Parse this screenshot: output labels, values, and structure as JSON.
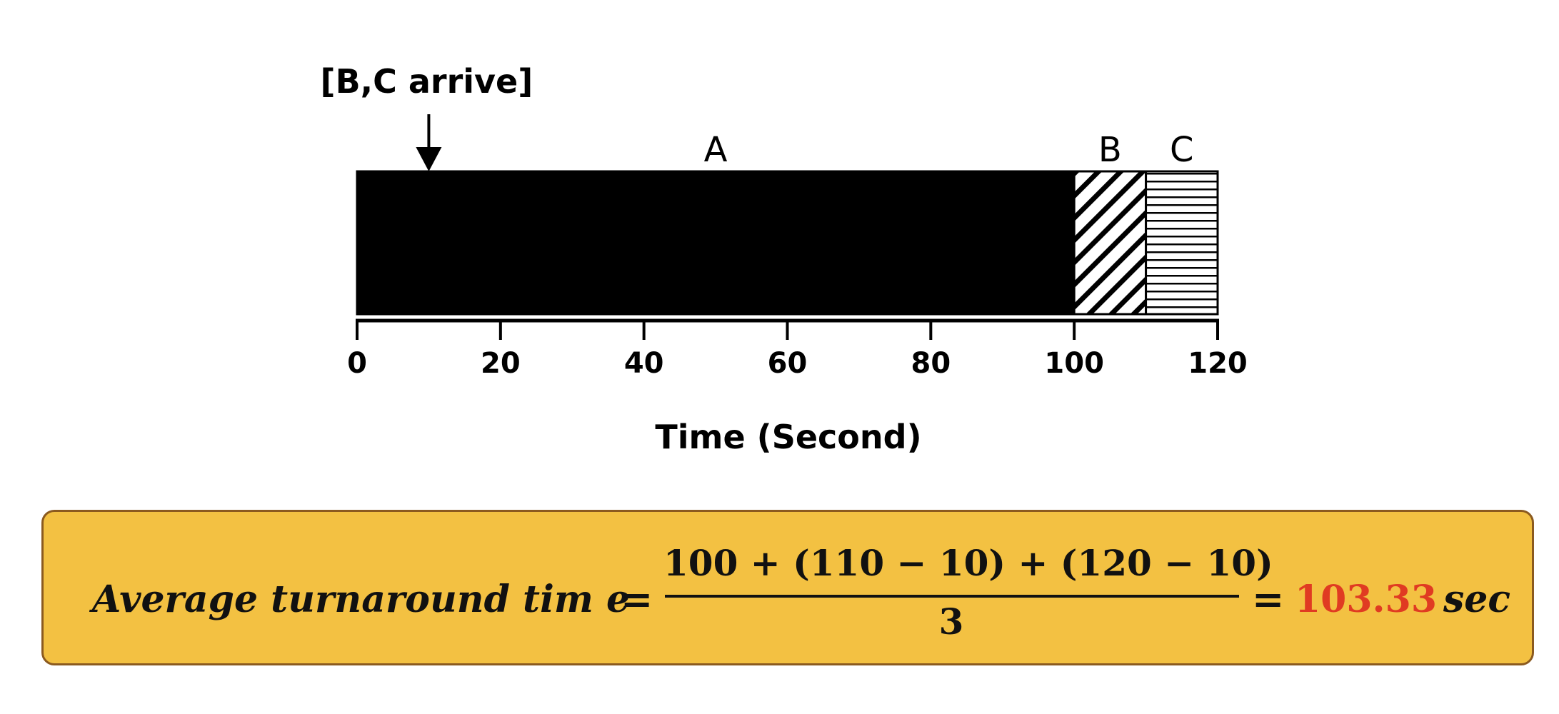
{
  "annotation": {
    "label": "[B,C arrive]",
    "time": 10
  },
  "timeline": {
    "axis_label": "Time (Second)",
    "axis_range": [
      0,
      120
    ],
    "ticks": [
      0,
      20,
      40,
      60,
      80,
      100,
      120
    ],
    "tick_labels": [
      "0",
      "20",
      "40",
      "60",
      "80",
      "100",
      "120"
    ],
    "segments": [
      {
        "label": "A",
        "start": 0,
        "end": 100,
        "fill": "solid",
        "color": "#000000"
      },
      {
        "label": "B",
        "start": 100,
        "end": 110,
        "fill": "diagonal-hatch",
        "color": "#000000"
      },
      {
        "label": "C",
        "start": 110,
        "end": 120,
        "fill": "horizontal-hatch",
        "color": "#000000"
      }
    ]
  },
  "formula": {
    "lhs": "Average  turnaround   tim e",
    "equals": "=",
    "numerator": "100 + (110 − 10) + (120 − 10)",
    "denominator": "3",
    "result": "103.33",
    "unit": "sec",
    "box_color": "#f3c142",
    "border_color": "#8b5a1f",
    "result_color": "#e03b22"
  }
}
